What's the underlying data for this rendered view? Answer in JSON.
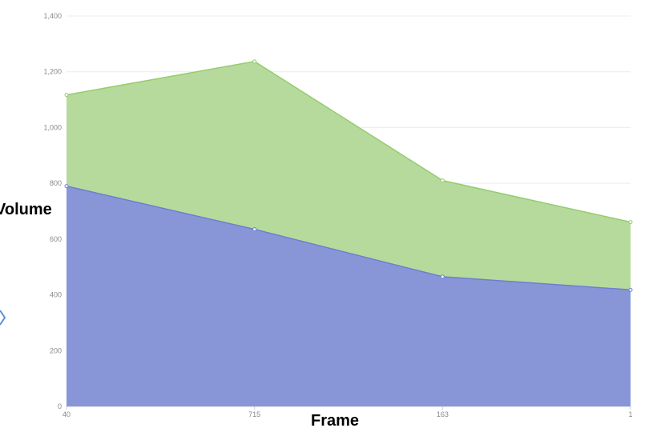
{
  "chart_data": {
    "type": "area",
    "stacked": true,
    "categories": [
      "40",
      "715",
      "163",
      "1"
    ],
    "series": [
      {
        "values": [
          790,
          635,
          465,
          418
        ],
        "color": "#8896d8",
        "line_color": "#6c7fd0"
      },
      {
        "values": [
          327,
          602,
          345,
          243
        ],
        "color": "#b6da9c",
        "line_color": "#95cc6e"
      }
    ],
    "stacked_totals": [
      1117,
      1237,
      810,
      661
    ],
    "xlabel": "Frame",
    "ylabel": "Volume",
    "ylim": [
      0,
      1400
    ],
    "yticks": [
      "0",
      "200",
      "400",
      "600",
      "800",
      "1,000",
      "1,200",
      "1,400"
    ],
    "grid": true,
    "arrow_color": "#5b8fd6"
  }
}
